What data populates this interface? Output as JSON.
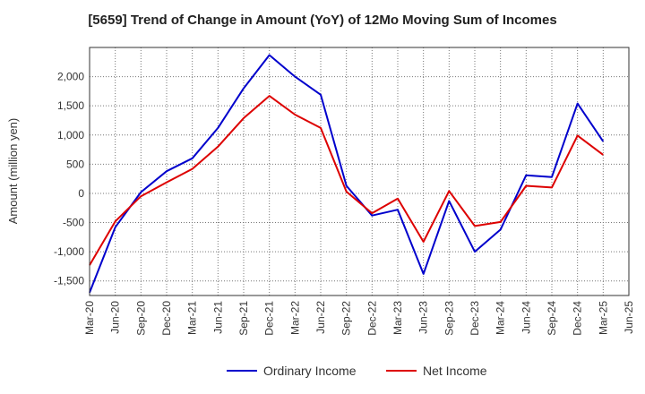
{
  "chart_data": {
    "type": "line",
    "title": "[5659]  Trend of Change in Amount (YoY) of 12Mo Moving Sum of Incomes",
    "xlabel": "",
    "ylabel": "Amount (million yen)",
    "x": [
      "Mar-20",
      "Jun-20",
      "Sep-20",
      "Dec-20",
      "Mar-21",
      "Jun-21",
      "Sep-21",
      "Dec-21",
      "Mar-22",
      "Jun-22",
      "Sep-22",
      "Dec-22",
      "Mar-23",
      "Jun-23",
      "Sep-23",
      "Dec-23",
      "Mar-24",
      "Jun-24",
      "Sep-24",
      "Dec-24",
      "Mar-25",
      "Jun-25"
    ],
    "ylim": [
      -1750,
      2500
    ],
    "yticks": [
      -1500,
      -1000,
      -500,
      0,
      500,
      1000,
      1500,
      2000
    ],
    "ytick_labels": [
      "-1,500",
      "-1,000",
      "-500",
      "0",
      "500",
      "1,000",
      "1,500",
      "2,000"
    ],
    "grid": true,
    "legend_position": "bottom",
    "series": [
      {
        "name": "Ordinary Income",
        "color": "#0000cc",
        "values": [
          -1700,
          -580,
          20,
          380,
          600,
          1120,
          1800,
          2370,
          2000,
          1690,
          130,
          -380,
          -280,
          -1380,
          -130,
          -1000,
          -620,
          310,
          280,
          1540,
          890,
          null
        ]
      },
      {
        "name": "Net Income",
        "color": "#dd0000",
        "values": [
          -1230,
          -480,
          -50,
          190,
          420,
          800,
          1290,
          1670,
          1350,
          1120,
          30,
          -340,
          -90,
          -830,
          40,
          -560,
          -490,
          130,
          100,
          990,
          660,
          null
        ]
      }
    ]
  }
}
